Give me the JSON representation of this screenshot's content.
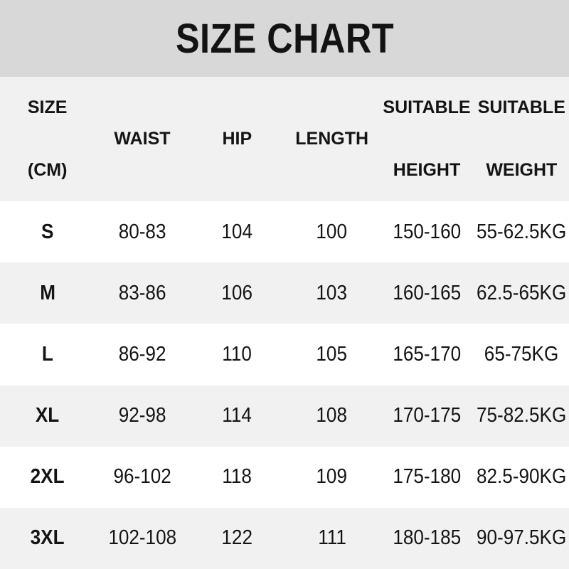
{
  "title": {
    "text": "SIZE CHART"
  },
  "colors": {
    "title_band_bg": "#d8d8d8",
    "header_bg": "#f1f1f1",
    "row_even_bg": "#ffffff",
    "row_odd_bg": "#f1f1f1",
    "text": "#141414"
  },
  "header": {
    "col1": {
      "top": "SIZE",
      "bottom": "(CM)"
    },
    "col2": {
      "mid": "WAIST"
    },
    "col3": {
      "mid": "HIP"
    },
    "col4": {
      "mid": "LENGTH"
    },
    "col5": {
      "top": "SUITABLE",
      "bottom": "HEIGHT"
    },
    "col6": {
      "top": "SUITABLE",
      "bottom": "WEIGHT"
    }
  },
  "chart_data": {
    "type": "table",
    "title": "SIZE CHART",
    "unit": "CM",
    "columns": [
      "SIZE (CM)",
      "WAIST",
      "HIP",
      "LENGTH",
      "SUITABLE HEIGHT",
      "SUITABLE WEIGHT"
    ],
    "rows": [
      {
        "size": "S",
        "waist": "80-83",
        "hip": "104",
        "length": "100",
        "height": "150-160",
        "weight": "55-62.5KG"
      },
      {
        "size": "M",
        "waist": "83-86",
        "hip": "106",
        "length": "103",
        "height": "160-165",
        "weight": "62.5-65KG"
      },
      {
        "size": "L",
        "waist": "86-92",
        "hip": "110",
        "length": "105",
        "height": "165-170",
        "weight": "65-75KG"
      },
      {
        "size": "XL",
        "waist": "92-98",
        "hip": "114",
        "length": "108",
        "height": "170-175",
        "weight": "75-82.5KG"
      },
      {
        "size": "2XL",
        "waist": "96-102",
        "hip": "118",
        "length": "109",
        "height": "175-180",
        "weight": "82.5-90KG"
      },
      {
        "size": "3XL",
        "waist": "102-108",
        "hip": "122",
        "length": "111",
        "height": "180-185",
        "weight": "90-97.5KG"
      }
    ]
  }
}
